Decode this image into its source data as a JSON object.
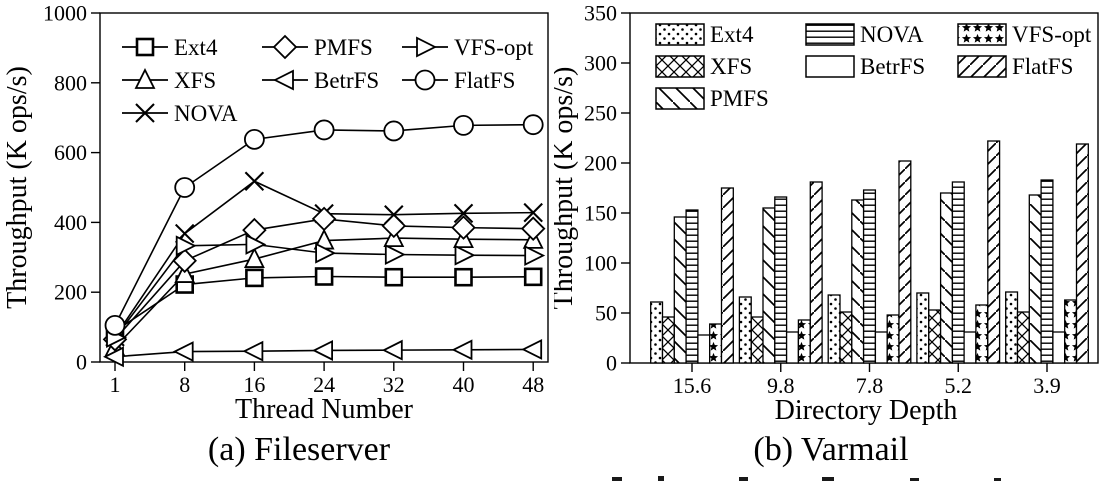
{
  "colors": {
    "ink": "#000000",
    "background": "#ffffff"
  },
  "chart_data": [
    {
      "type": "line",
      "title": "(a) Fileserver",
      "xlabel": "Thread Number",
      "ylabel": "Throughput (K ops/s)",
      "x": [
        1,
        8,
        16,
        24,
        32,
        40,
        48
      ],
      "ylim": [
        0,
        1000
      ],
      "yticks": [
        0,
        200,
        400,
        600,
        800,
        1000
      ],
      "grid": false,
      "legend_position": "top-left-inside",
      "legend_rows": [
        [
          "Ext4",
          "PMFS",
          "VFS-opt"
        ],
        [
          "XFS",
          "BetrFS",
          "FlatFS"
        ],
        [
          "NOVA"
        ]
      ],
      "series": [
        {
          "name": "Ext4",
          "marker": "square",
          "values": [
            88,
            222,
            241,
            245,
            243,
            243,
            244
          ]
        },
        {
          "name": "XFS",
          "marker": "triangle-up",
          "values": [
            42,
            252,
            295,
            348,
            355,
            352,
            350
          ]
        },
        {
          "name": "NOVA",
          "marker": "x",
          "values": [
            72,
            368,
            518,
            425,
            422,
            426,
            428
          ]
        },
        {
          "name": "PMFS",
          "marker": "diamond",
          "values": [
            65,
            290,
            378,
            410,
            390,
            385,
            382
          ]
        },
        {
          "name": "BetrFS",
          "marker": "triangle-left",
          "values": [
            15,
            30,
            31,
            33,
            34,
            35,
            36
          ]
        },
        {
          "name": "VFS-opt",
          "marker": "triangle-right",
          "values": [
            70,
            333,
            337,
            312,
            308,
            306,
            305
          ]
        },
        {
          "name": "FlatFS",
          "marker": "circle",
          "values": [
            105,
            500,
            638,
            665,
            662,
            678,
            680
          ]
        }
      ]
    },
    {
      "type": "bar",
      "title": "(b) Varmail",
      "xlabel": "Directory Depth",
      "ylabel": "Throughput (K ops/s)",
      "categories": [
        "15.6",
        "9.8",
        "7.8",
        "5.2",
        "3.9"
      ],
      "ylim": [
        0,
        350
      ],
      "yticks": [
        0,
        50,
        100,
        150,
        200,
        250,
        300,
        350
      ],
      "grid": false,
      "legend_position": "top-left-inside",
      "legend_rows": [
        [
          "Ext4",
          "NOVA",
          "VFS-opt"
        ],
        [
          "XFS",
          "BetrFS",
          "FlatFS"
        ],
        [
          "PMFS"
        ]
      ],
      "series": [
        {
          "name": "Ext4",
          "pattern": "dots",
          "values": [
            61,
            66,
            68,
            70,
            71
          ]
        },
        {
          "name": "XFS",
          "pattern": "crosshatch",
          "values": [
            46,
            46,
            51,
            53,
            51
          ]
        },
        {
          "name": "PMFS",
          "pattern": "backslash",
          "values": [
            146,
            155,
            163,
            170,
            168
          ]
        },
        {
          "name": "NOVA",
          "pattern": "hlines",
          "values": [
            153,
            166,
            173,
            181,
            183
          ]
        },
        {
          "name": "BetrFS",
          "pattern": "plain",
          "values": [
            28,
            31,
            31,
            31,
            31
          ]
        },
        {
          "name": "VFS-opt",
          "pattern": "stars",
          "values": [
            39,
            43,
            48,
            58,
            63
          ]
        },
        {
          "name": "FlatFS",
          "pattern": "slash",
          "values": [
            175,
            181,
            202,
            222,
            219
          ]
        }
      ]
    }
  ]
}
